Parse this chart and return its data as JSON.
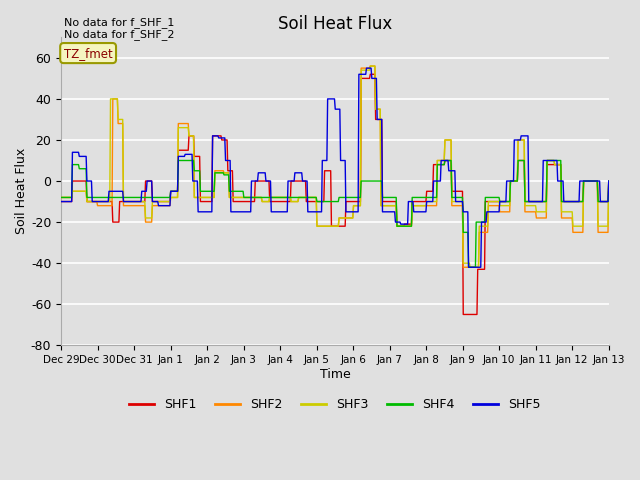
{
  "title": "Soil Heat Flux",
  "xlabel": "Time",
  "ylabel": "Soil Heat Flux",
  "ylim": [
    -80,
    70
  ],
  "background_color": "#e0e0e0",
  "plot_bg_color": "#e0e0e0",
  "grid_color": "white",
  "annotation_text1": "No data for f_SHF_1",
  "annotation_text2": "No data for f_SHF_2",
  "legend_label": "TZ_fmet",
  "series_colors": {
    "SHF1": "#dd0000",
    "SHF2": "#ff8800",
    "SHF3": "#cccc00",
    "SHF4": "#00bb00",
    "SHF5": "#0000dd"
  },
  "xtick_labels": [
    "Dec 29",
    "Dec 30",
    "Dec 31",
    "Jan 1",
    "Jan 2",
    "Jan 3",
    "Jan 4",
    "Jan 5",
    "Jan 6",
    "Jan 7",
    "Jan 8",
    "Jan 9",
    "Jan 10",
    "Jan 11",
    "Jan 12",
    "Jan 13"
  ],
  "ytick_values": [
    -80,
    -60,
    -40,
    -20,
    0,
    20,
    40,
    60
  ],
  "figsize": [
    6.4,
    4.8
  ],
  "dpi": 100
}
